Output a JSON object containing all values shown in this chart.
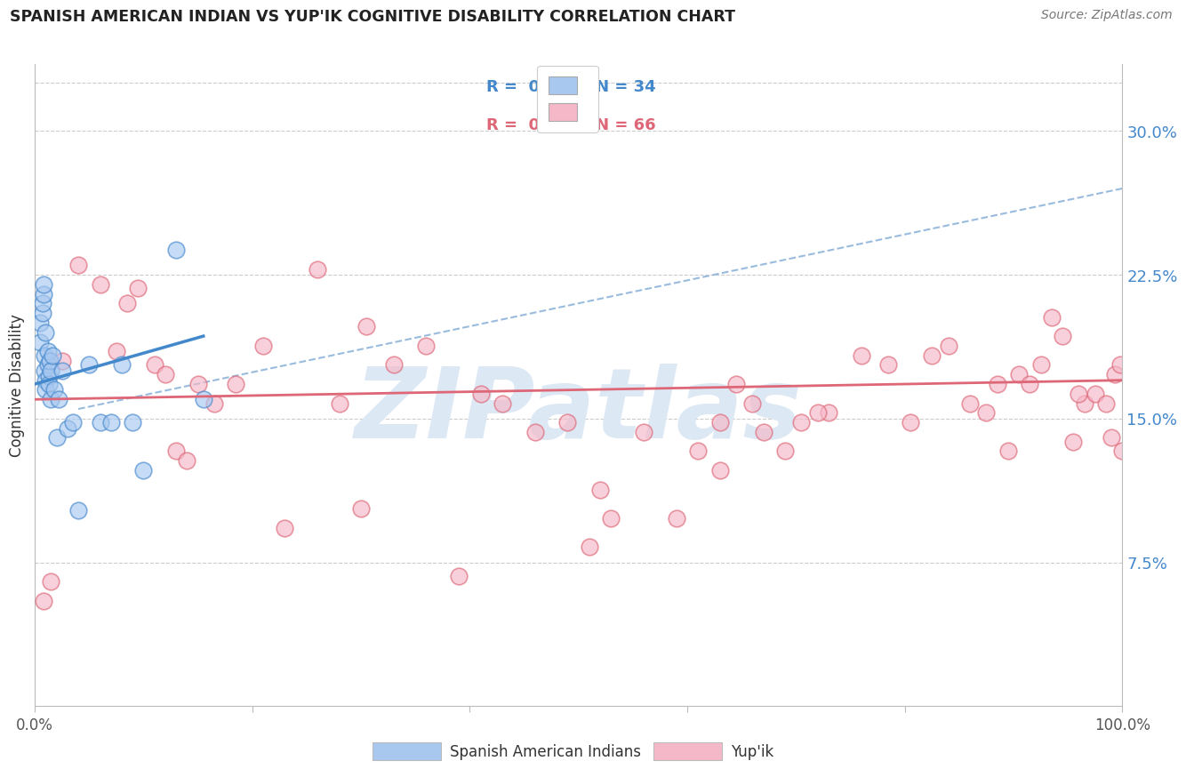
{
  "title": "SPANISH AMERICAN INDIAN VS YUP'IK COGNITIVE DISABILITY CORRELATION CHART",
  "source": "Source: ZipAtlas.com",
  "ylabel": "Cognitive Disability",
  "right_yticks": [
    "7.5%",
    "15.0%",
    "22.5%",
    "30.0%"
  ],
  "right_ytick_vals": [
    0.075,
    0.15,
    0.225,
    0.3
  ],
  "xlim": [
    0.0,
    1.0
  ],
  "ylim": [
    0.0,
    0.335
  ],
  "legend_R1": "R =  0.071",
  "legend_N1": "N = 34",
  "legend_R2": "R =  0.045",
  "legend_N2": "N = 66",
  "color_blue": "#a8c8f0",
  "color_pink": "#f5b8c8",
  "color_blue_line": "#4488cc",
  "color_pink_line": "#dd6677",
  "color_dashed": "#99bbdd",
  "watermark_text": "ZIPatlas",
  "watermark_color": "#dde8f5",
  "blue_points_x": [
    0.005,
    0.005,
    0.007,
    0.007,
    0.008,
    0.008,
    0.009,
    0.009,
    0.01,
    0.01,
    0.01,
    0.012,
    0.012,
    0.013,
    0.013,
    0.014,
    0.015,
    0.015,
    0.016,
    0.018,
    0.02,
    0.022,
    0.025,
    0.03,
    0.035,
    0.04,
    0.05,
    0.06,
    0.07,
    0.08,
    0.09,
    0.1,
    0.13,
    0.155
  ],
  "blue_points_y": [
    0.19,
    0.2,
    0.205,
    0.21,
    0.215,
    0.22,
    0.175,
    0.183,
    0.17,
    0.195,
    0.165,
    0.178,
    0.185,
    0.172,
    0.168,
    0.18,
    0.16,
    0.175,
    0.183,
    0.165,
    0.14,
    0.16,
    0.175,
    0.145,
    0.148,
    0.102,
    0.178,
    0.148,
    0.148,
    0.178,
    0.148,
    0.123,
    0.238,
    0.16
  ],
  "pink_points_x": [
    0.008,
    0.015,
    0.025,
    0.04,
    0.06,
    0.075,
    0.085,
    0.095,
    0.11,
    0.12,
    0.13,
    0.14,
    0.15,
    0.165,
    0.185,
    0.21,
    0.23,
    0.26,
    0.28,
    0.305,
    0.33,
    0.36,
    0.39,
    0.41,
    0.43,
    0.46,
    0.49,
    0.51,
    0.53,
    0.56,
    0.59,
    0.61,
    0.63,
    0.645,
    0.66,
    0.69,
    0.705,
    0.73,
    0.76,
    0.785,
    0.805,
    0.825,
    0.84,
    0.86,
    0.875,
    0.885,
    0.895,
    0.905,
    0.915,
    0.925,
    0.935,
    0.945,
    0.955,
    0.965,
    0.975,
    0.985,
    0.993,
    0.998,
    1.0,
    0.3,
    0.52,
    0.63,
    0.67,
    0.72,
    0.96,
    0.99
  ],
  "pink_points_y": [
    0.055,
    0.065,
    0.18,
    0.23,
    0.22,
    0.185,
    0.21,
    0.218,
    0.178,
    0.173,
    0.133,
    0.128,
    0.168,
    0.158,
    0.168,
    0.188,
    0.093,
    0.228,
    0.158,
    0.198,
    0.178,
    0.188,
    0.068,
    0.163,
    0.158,
    0.143,
    0.148,
    0.083,
    0.098,
    0.143,
    0.098,
    0.133,
    0.148,
    0.168,
    0.158,
    0.133,
    0.148,
    0.153,
    0.183,
    0.178,
    0.148,
    0.183,
    0.188,
    0.158,
    0.153,
    0.168,
    0.133,
    0.173,
    0.168,
    0.178,
    0.203,
    0.193,
    0.138,
    0.158,
    0.163,
    0.158,
    0.173,
    0.178,
    0.133,
    0.103,
    0.113,
    0.123,
    0.143,
    0.153,
    0.163,
    0.14
  ],
  "blue_line_x": [
    0.0,
    0.155
  ],
  "blue_line_y": [
    0.168,
    0.193
  ],
  "pink_line_x": [
    0.0,
    1.0
  ],
  "pink_line_y": [
    0.16,
    0.17
  ],
  "dashed_line_x": [
    0.04,
    1.0
  ],
  "dashed_line_y": [
    0.155,
    0.27
  ],
  "grid_color": "#cccccc",
  "background_color": "#ffffff"
}
